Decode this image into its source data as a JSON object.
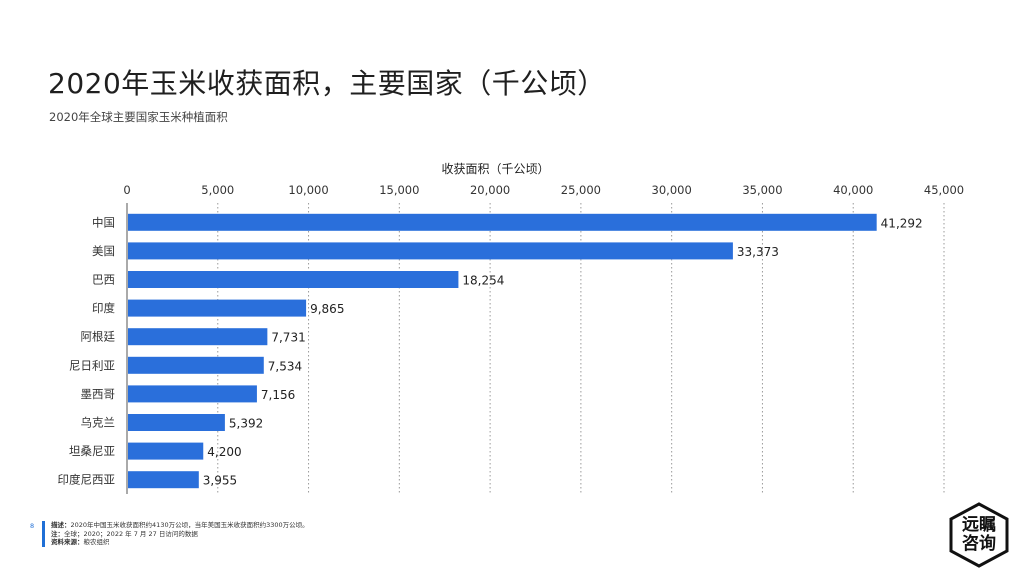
{
  "header": {
    "title": "2020年玉米收获面积，主要国家（千公顷）",
    "subtitle": "2020年全球主要国家玉米种植面积"
  },
  "chart_data": {
    "type": "bar",
    "orientation": "horizontal",
    "xlabel": "收获面积（千公顷）",
    "xlim": [
      0,
      45000
    ],
    "xticks": [
      0,
      5000,
      10000,
      15000,
      20000,
      25000,
      30000,
      35000,
      40000,
      45000
    ],
    "xtick_labels": [
      "0",
      "5,000",
      "10,000",
      "15,000",
      "20,000",
      "25,000",
      "30,000",
      "35,000",
      "40,000",
      "45,000"
    ],
    "categories": [
      "中国",
      "美国",
      "巴西",
      "印度",
      "阿根廷",
      "尼日利亚",
      "墨西哥",
      "乌克兰",
      "坦桑尼亚",
      "印度尼西亚"
    ],
    "values": [
      41292,
      33373,
      18254,
      9865,
      7731,
      7534,
      7156,
      5392,
      4200,
      3955
    ],
    "value_labels": [
      "41,292",
      "33,373",
      "18,254",
      "9,865",
      "7,731",
      "7,534",
      "7,156",
      "5,392",
      "4,200",
      "3,955"
    ],
    "bar_color": "#2a6fdb",
    "grid": "vertical dotted"
  },
  "footer": {
    "page_number": "8",
    "desc_label": "描述：",
    "desc_text": "2020年中国玉米收获面积约4130万公顷，当年美国玉米收获面积约3300万公顷。",
    "note_label": "注：",
    "note_text": "全球；2020；2022 年 7 月 27 日访问的数据",
    "source_label": "资料来源：",
    "source_text": "粮农组织"
  },
  "logo": {
    "line1": "远瞩",
    "line2": "咨询"
  }
}
